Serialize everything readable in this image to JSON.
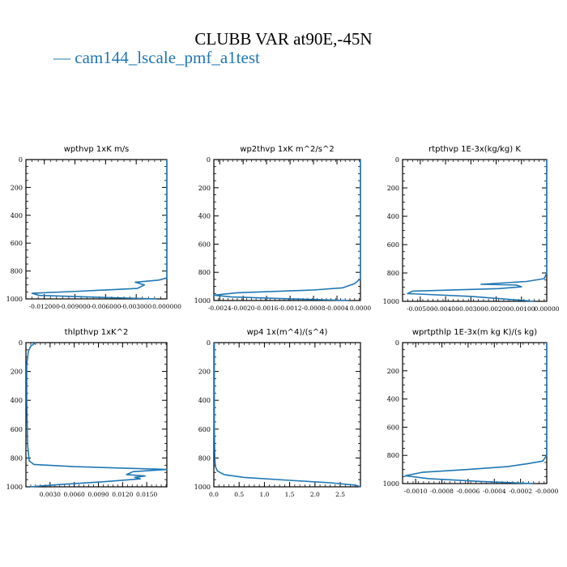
{
  "figure": {
    "title": "CLUBB VAR at90E,-45N",
    "legend": {
      "dash": "—",
      "label": "cam144_lscale_pmf_a1test",
      "color": "#1f77b4"
    }
  },
  "chart_data": [
    {
      "type": "line",
      "title": "wpthvp   1xK m/s",
      "xlim": [
        -0.0138,
        0.0
      ],
      "ylim": [
        1000,
        0
      ],
      "xticks": [
        -0.012,
        -0.009,
        -0.006,
        -0.003,
        0.0
      ],
      "xticklabels": [
        "-0.012000",
        "-0.009000",
        "-0.006000",
        "-0.003000",
        "0.000000"
      ],
      "yticks": [
        0,
        200,
        400,
        600,
        800,
        1000
      ],
      "series": [
        {
          "x": [
            0,
            0,
            0,
            0,
            0,
            0,
            0,
            0,
            -0.0001,
            -0.0008,
            -0.0031,
            -0.0022,
            -0.0029,
            -0.0085,
            -0.0132,
            -0.0125,
            -0.006,
            -0.001
          ],
          "y": [
            0,
            300,
            600,
            780,
            820,
            840,
            845,
            848,
            852,
            865,
            880,
            900,
            925,
            945,
            960,
            975,
            990,
            1000
          ]
        }
      ]
    },
    {
      "type": "line",
      "title": "wp2thvp   1xK m^2/s^2",
      "xlim": [
        -0.0025,
        0.0
      ],
      "ylim": [
        1000,
        0
      ],
      "xticks": [
        -0.0024,
        -0.002,
        -0.0016,
        -0.0012,
        -0.0008,
        -0.0004,
        0.0
      ],
      "xticklabels": [
        "-0.0024",
        "-0.0020",
        "-0.0016",
        "-0.0012",
        "-0.0008",
        "-0.0004",
        "0.0000"
      ],
      "yticks": [
        0,
        200,
        400,
        600,
        800,
        1000
      ],
      "series": [
        {
          "x": [
            0,
            0,
            0,
            0,
            0,
            -0.0001,
            -0.0003,
            -0.0008,
            -0.0021,
            -0.0025,
            -0.0022,
            -0.0012,
            -0.0002
          ],
          "y": [
            0,
            300,
            600,
            800,
            845,
            880,
            910,
            925,
            945,
            962,
            975,
            988,
            1000
          ]
        }
      ]
    },
    {
      "type": "line",
      "title": "rtpthvp   1E-3x(kg/kg) K",
      "xlim": [
        -0.0057,
        0.0
      ],
      "ylim": [
        1000,
        0
      ],
      "xticks": [
        -0.005,
        -0.004,
        -0.003,
        -0.002,
        -0.001,
        0.0
      ],
      "xticklabels": [
        "-0.00500",
        "-0.00400",
        "-0.00300",
        "-0.00200",
        "-0.00100",
        "0.00000"
      ],
      "yticks": [
        0,
        200,
        400,
        600,
        800,
        1000
      ],
      "series": [
        {
          "x": [
            0,
            0,
            0,
            0,
            -0.0001,
            -0.0008,
            -0.0026,
            -0.0012,
            -0.001,
            -0.0019,
            -0.0053,
            -0.0055,
            -0.003,
            -0.0005
          ],
          "y": [
            0,
            300,
            600,
            800,
            840,
            860,
            880,
            885,
            898,
            910,
            928,
            945,
            965,
            1000
          ]
        }
      ]
    },
    {
      "type": "line",
      "title": "thlpthvp   1xK^2",
      "xlim": [
        0.0,
        0.0175
      ],
      "ylim": [
        1000,
        0
      ],
      "xticks": [
        0.003,
        0.006,
        0.009,
        0.012,
        0.015
      ],
      "xticklabels": [
        "0.0030",
        "0.0060",
        "0.0090",
        "0.0120",
        "0.0150"
      ],
      "yticks": [
        0,
        200,
        400,
        600,
        800,
        1000
      ],
      "series": [
        {
          "x": [
            0.0012,
            0.0006,
            0.0003,
            0.0001,
            0.0001,
            0.0002,
            0.0004,
            0.001,
            0.006,
            0.0175,
            0.0133,
            0.0125,
            0.0148,
            0.0135,
            0.0142,
            0.0095,
            0.004,
            0.0005
          ],
          "y": [
            0,
            25,
            60,
            150,
            400,
            700,
            820,
            845,
            860,
            880,
            895,
            915,
            925,
            935,
            945,
            965,
            985,
            1000
          ]
        }
      ]
    },
    {
      "type": "line",
      "title": "wp4   1x(m^4)/(s^4)",
      "xlim": [
        0.0,
        2.9
      ],
      "ylim": [
        1000,
        0
      ],
      "xticks": [
        0.0,
        0.5,
        1.0,
        1.5,
        2.0,
        2.5
      ],
      "xticklabels": [
        "0.0",
        "0.5",
        "1.0",
        "1.5",
        "2.0",
        "2.5"
      ],
      "yticks": [
        0,
        200,
        400,
        600,
        800,
        1000
      ],
      "series": [
        {
          "x": [
            0.01,
            0.01,
            0.01,
            0.02,
            0.03,
            0.07,
            0.2,
            0.6,
            1.5,
            2.3,
            2.8,
            2.9
          ],
          "y": [
            0,
            300,
            600,
            800,
            860,
            890,
            915,
            935,
            955,
            972,
            988,
            1000
          ]
        }
      ]
    },
    {
      "type": "line",
      "title": "wprtpthlp   1E-3x(m kg K)/(s kg)",
      "xlim": [
        -0.0011,
        0.0
      ],
      "ylim": [
        1000,
        0
      ],
      "xticks": [
        -0.001,
        -0.0008,
        -0.0006,
        -0.0004,
        -0.0002,
        -0.0
      ],
      "xticklabels": [
        "-0.0010",
        "-0.0008",
        "-0.0006",
        "-0.0004",
        "-0.0002",
        "-0.0000"
      ],
      "yticks": [
        0,
        200,
        400,
        600,
        800,
        1000
      ],
      "series": [
        {
          "x": [
            0,
            0,
            0,
            0,
            -3e-05,
            -0.00015,
            -0.0003,
            -0.0006,
            -0.00095,
            -0.00108,
            -0.0009,
            -0.0005,
            -0.0001
          ],
          "y": [
            0,
            300,
            600,
            800,
            840,
            860,
            880,
            900,
            920,
            945,
            965,
            985,
            1000
          ]
        }
      ]
    }
  ]
}
